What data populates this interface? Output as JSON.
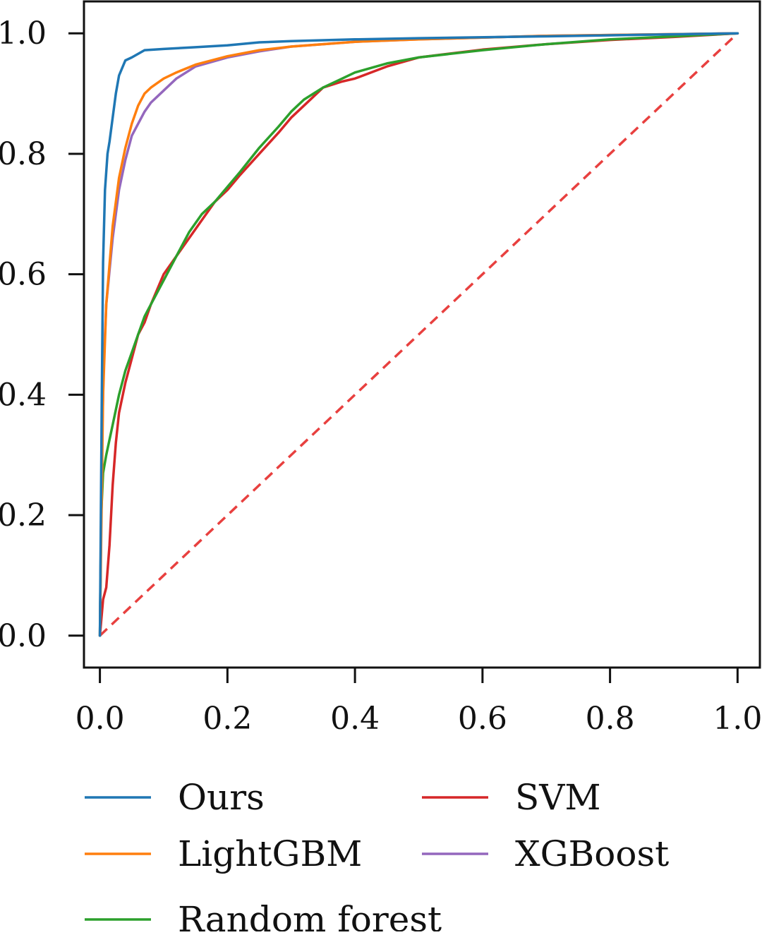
{
  "chart_data": {
    "type": "line",
    "title": "",
    "xlabel": "",
    "ylabel": "",
    "xlim": [
      -0.025,
      1.035
    ],
    "ylim": [
      -0.053,
      1.053
    ],
    "xticks": [
      0.0,
      0.2,
      0.4,
      0.6,
      0.8,
      1.0
    ],
    "yticks": [
      0.0,
      0.2,
      0.4,
      0.6,
      0.8,
      1.0
    ],
    "xtick_labels": [
      "0.0",
      "0.2",
      "0.4",
      "0.6",
      "0.8",
      "1.0"
    ],
    "ytick_labels": [
      "0.0",
      "0.2",
      "0.4",
      "0.6",
      "0.8",
      "1.0"
    ],
    "grid": false,
    "legend_position": "bottom, outside plot, two columns",
    "series": [
      {
        "name": "Ours",
        "color": "#1f77b4",
        "x": [
          0.0,
          0.003,
          0.005,
          0.008,
          0.012,
          0.015,
          0.02,
          0.025,
          0.03,
          0.04,
          0.05,
          0.07,
          0.1,
          0.15,
          0.2,
          0.25,
          0.3,
          0.4,
          0.5,
          0.7,
          1.0
        ],
        "y": [
          0.0,
          0.4,
          0.62,
          0.74,
          0.8,
          0.82,
          0.86,
          0.9,
          0.93,
          0.955,
          0.96,
          0.972,
          0.974,
          0.977,
          0.98,
          0.985,
          0.987,
          0.99,
          0.992,
          0.995,
          1.0
        ]
      },
      {
        "name": "LightGBM",
        "color": "#ff7f0e",
        "x": [
          0.0,
          0.005,
          0.01,
          0.02,
          0.03,
          0.04,
          0.05,
          0.06,
          0.07,
          0.08,
          0.1,
          0.12,
          0.15,
          0.2,
          0.25,
          0.3,
          0.4,
          0.5,
          0.7,
          1.0
        ],
        "y": [
          0.0,
          0.4,
          0.55,
          0.68,
          0.76,
          0.81,
          0.85,
          0.88,
          0.9,
          0.91,
          0.925,
          0.935,
          0.948,
          0.962,
          0.972,
          0.978,
          0.986,
          0.99,
          0.996,
          1.0
        ]
      },
      {
        "name": "Random forest",
        "color": "#2ca02c",
        "x": [
          0.0,
          0.002,
          0.005,
          0.01,
          0.02,
          0.03,
          0.04,
          0.05,
          0.06,
          0.07,
          0.08,
          0.09,
          0.1,
          0.12,
          0.14,
          0.16,
          0.18,
          0.2,
          0.22,
          0.25,
          0.28,
          0.3,
          0.32,
          0.35,
          0.38,
          0.4,
          0.45,
          0.5,
          0.6,
          0.7,
          0.8,
          0.9,
          1.0
        ],
        "y": [
          0.0,
          0.2,
          0.27,
          0.3,
          0.35,
          0.4,
          0.44,
          0.47,
          0.5,
          0.53,
          0.55,
          0.57,
          0.59,
          0.63,
          0.67,
          0.7,
          0.72,
          0.745,
          0.77,
          0.81,
          0.845,
          0.87,
          0.89,
          0.91,
          0.925,
          0.935,
          0.95,
          0.96,
          0.972,
          0.982,
          0.99,
          0.995,
          1.0
        ]
      },
      {
        "name": "SVM",
        "color": "#d62728",
        "x": [
          0.0,
          0.005,
          0.01,
          0.015,
          0.02,
          0.025,
          0.03,
          0.04,
          0.05,
          0.06,
          0.07,
          0.08,
          0.1,
          0.12,
          0.14,
          0.16,
          0.18,
          0.2,
          0.22,
          0.25,
          0.28,
          0.3,
          0.32,
          0.35,
          0.38,
          0.4,
          0.45,
          0.5,
          0.6,
          0.7,
          0.8,
          0.9,
          1.0
        ],
        "y": [
          0.0,
          0.06,
          0.08,
          0.15,
          0.25,
          0.32,
          0.37,
          0.42,
          0.46,
          0.5,
          0.52,
          0.55,
          0.6,
          0.63,
          0.66,
          0.69,
          0.72,
          0.74,
          0.765,
          0.8,
          0.835,
          0.86,
          0.88,
          0.91,
          0.92,
          0.925,
          0.945,
          0.96,
          0.973,
          0.982,
          0.989,
          0.994,
          1.0
        ]
      },
      {
        "name": "XGBoost",
        "color": "#9467bd",
        "x": [
          0.0,
          0.003,
          0.006,
          0.01,
          0.02,
          0.03,
          0.04,
          0.05,
          0.06,
          0.07,
          0.08,
          0.1,
          0.12,
          0.15,
          0.2,
          0.25,
          0.3,
          0.4,
          0.5,
          0.7,
          1.0
        ],
        "y": [
          0.0,
          0.3,
          0.45,
          0.55,
          0.66,
          0.74,
          0.79,
          0.83,
          0.85,
          0.87,
          0.885,
          0.905,
          0.925,
          0.945,
          0.96,
          0.97,
          0.978,
          0.986,
          0.99,
          0.996,
          1.0
        ]
      }
    ],
    "reference_line": {
      "color": "#e8403f",
      "style": "dashed",
      "x": [
        0.0,
        1.0
      ],
      "y": [
        0.0,
        1.0
      ]
    }
  }
}
